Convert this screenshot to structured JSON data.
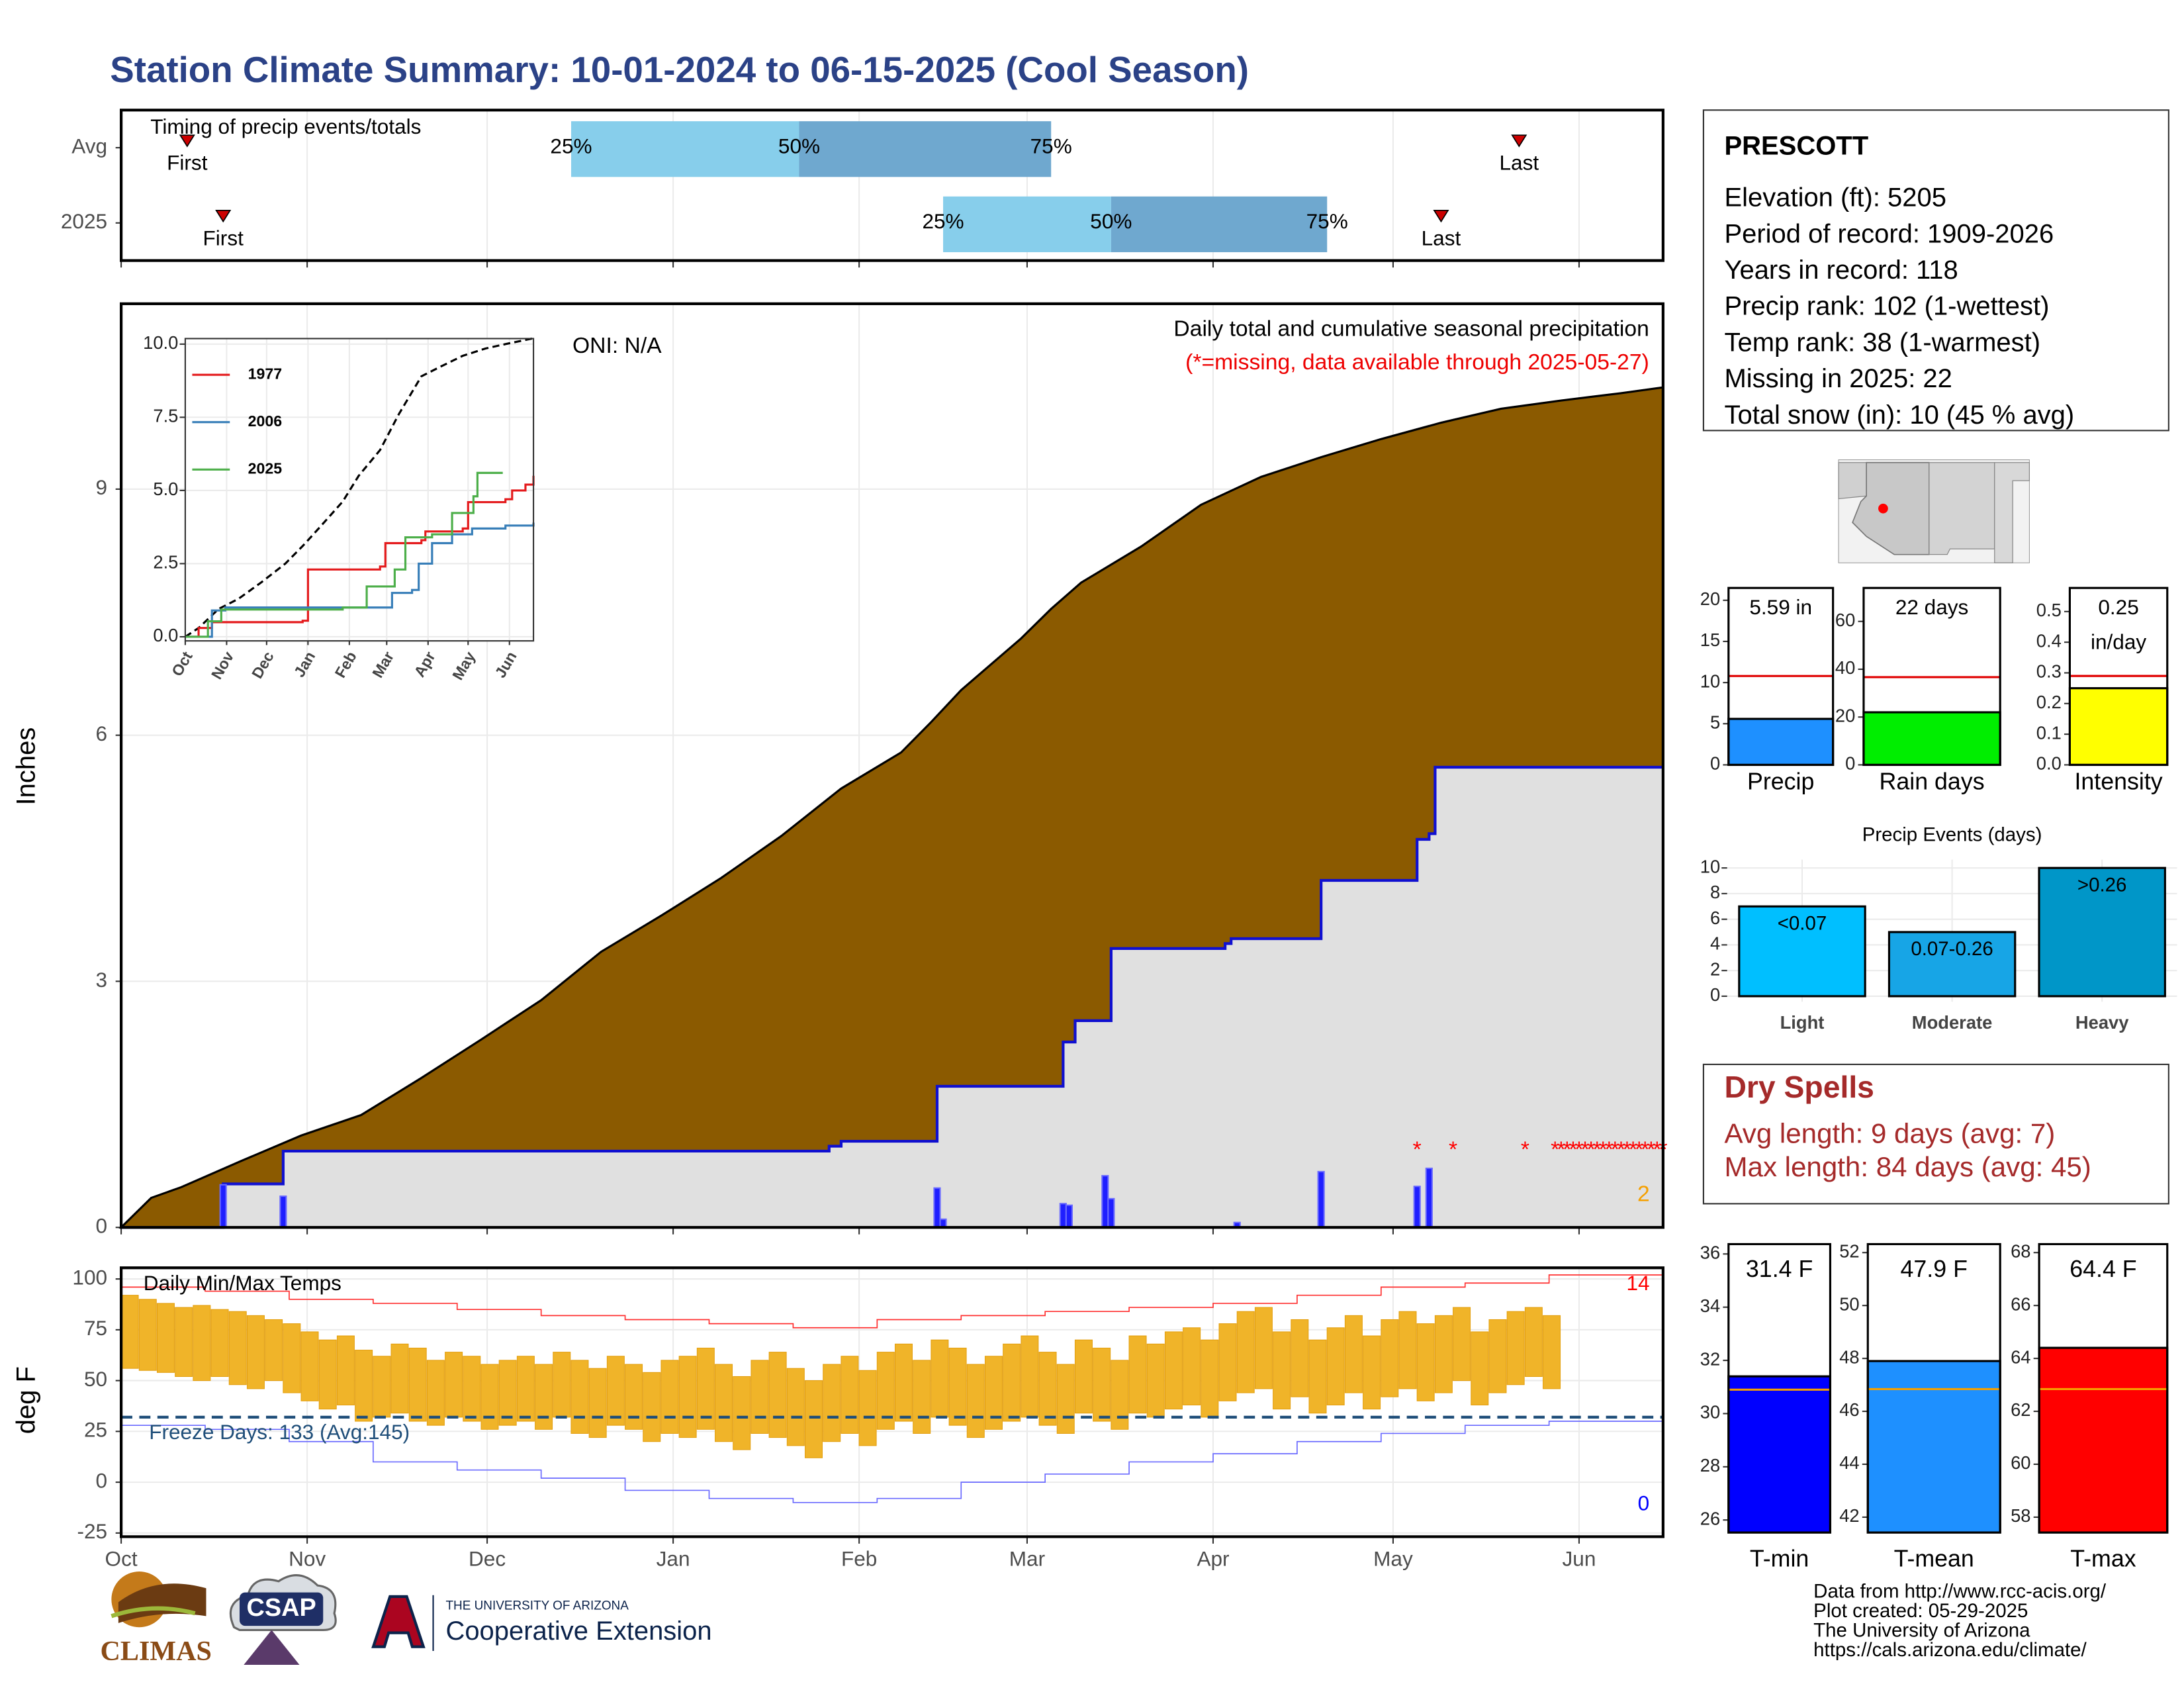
{
  "title": "Station Climate Summary: 10-01-2024 to 06-15-2025 (Cool Season)",
  "chart_data": [
    {
      "type": "timing",
      "title": "Timing of precip events/totals",
      "rows": [
        {
          "name": "Avg",
          "first": 11,
          "q25": 75,
          "q50": 113,
          "q75": 155,
          "last": 233
        },
        {
          "name": "2025",
          "first": 17,
          "q25": 137,
          "q50": 165,
          "q75": 201,
          "last": 220
        }
      ],
      "first_label": "First",
      "last_label": "Last",
      "quantile_labels": [
        "25%",
        "50%",
        "75%"
      ],
      "colors": [
        "#87ceeb",
        "#6fa8cf"
      ],
      "marker_color": "#cc0000"
    },
    {
      "type": "precip",
      "title": "Daily total and cumulative seasonal precipitation",
      "note": "(*=missing, data available through 2025-05-27)",
      "oni": "ONI: N/A",
      "ylabel": "Inches",
      "ylim": [
        0,
        11.26
      ],
      "yticks": [
        0,
        3,
        6,
        9
      ],
      "average": {
        "color": "#8b5a00",
        "x": [
          0,
          5,
          10,
          20,
          30,
          40,
          50,
          60,
          70,
          80,
          90,
          100,
          110,
          120,
          130,
          135,
          140,
          150,
          155,
          160,
          170,
          180,
          190,
          200,
          210,
          220,
          230,
          240,
          250,
          257
        ],
        "values": [
          0,
          0.36,
          0.49,
          0.81,
          1.12,
          1.37,
          1.82,
          2.29,
          2.77,
          3.36,
          3.8,
          4.26,
          4.77,
          5.35,
          5.79,
          6.16,
          6.55,
          7.18,
          7.54,
          7.86,
          8.3,
          8.81,
          9.15,
          9.39,
          9.61,
          9.81,
          9.98,
          10.08,
          10.17,
          10.24
        ]
      },
      "cumulative": {
        "color": "#1010d0",
        "fill": "#e0e0e0",
        "x": [
          0,
          17,
          27,
          118,
          120,
          136,
          157,
          159,
          165,
          184,
          185,
          200,
          216,
          218,
          219,
          257
        ],
        "values": [
          0,
          0.53,
          0.93,
          0.99,
          1.05,
          1.72,
          2.26,
          2.52,
          3.4,
          3.46,
          3.52,
          4.23,
          4.73,
          4.8,
          5.61,
          5.61
        ]
      },
      "daily": {
        "color": "#1f1fff",
        "x": [
          17,
          27,
          136,
          137,
          157,
          158,
          164,
          165,
          186,
          200,
          216,
          218
        ],
        "values": [
          0.52,
          0.38,
          0.48,
          0.1,
          0.29,
          0.27,
          0.63,
          0.35,
          0.06,
          0.68,
          0.5,
          0.72
        ]
      },
      "missing": {
        "marker": "*",
        "color": "#ff0000",
        "x": [
          216,
          222,
          234,
          239,
          240,
          241,
          242,
          243,
          244,
          245,
          246,
          247,
          248,
          249,
          250,
          251,
          252,
          253,
          254,
          255,
          256,
          257
        ]
      },
      "annotation": {
        "value": 2,
        "color": "#f5a000"
      }
    },
    {
      "type": "minmax",
      "title": "Daily Min/Max Temps",
      "ylabel": "deg F",
      "xlim": [
        0,
        257
      ],
      "xticks": [
        {
          "value": 0,
          "label": "Oct"
        },
        {
          "value": 31,
          "label": "Nov"
        },
        {
          "value": 61,
          "label": "Dec"
        },
        {
          "value": 92,
          "label": "Jan"
        },
        {
          "value": 123,
          "label": "Feb"
        },
        {
          "value": 151,
          "label": "Mar"
        },
        {
          "value": 182,
          "label": "Apr"
        },
        {
          "value": 212,
          "label": "May"
        },
        {
          "value": 243,
          "label": "Jun"
        }
      ],
      "ylim": [
        -26.8,
        105.5
      ],
      "yticks": [
        -25,
        0,
        25,
        50,
        75,
        100
      ],
      "bar_color": "#f0b429",
      "x": [
        0,
        3,
        6,
        9,
        12,
        15,
        18,
        21,
        24,
        27,
        30,
        33,
        36,
        39,
        42,
        45,
        48,
        51,
        54,
        57,
        60,
        63,
        66,
        69,
        72,
        75,
        78,
        81,
        84,
        87,
        90,
        93,
        96,
        99,
        102,
        105,
        108,
        111,
        114,
        117,
        120,
        123,
        126,
        129,
        132,
        135,
        138,
        141,
        144,
        147,
        150,
        153,
        156,
        159,
        162,
        165,
        168,
        171,
        174,
        177,
        180,
        183,
        186,
        189,
        192,
        195,
        198,
        201,
        204,
        207,
        210,
        213,
        216,
        219,
        222,
        225,
        228,
        231,
        234,
        237
      ],
      "max": [
        92,
        90,
        88,
        86,
        87,
        85,
        84,
        82,
        80,
        78,
        74,
        70,
        72,
        65,
        62,
        68,
        66,
        60,
        64,
        62,
        58,
        60,
        62,
        58,
        64,
        60,
        56,
        62,
        58,
        54,
        60,
        62,
        66,
        58,
        52,
        60,
        64,
        56,
        50,
        58,
        62,
        55,
        64,
        68,
        60,
        70,
        66,
        58,
        62,
        68,
        72,
        64,
        58,
        70,
        66,
        60,
        72,
        68,
        74,
        76,
        70,
        78,
        84,
        86,
        74,
        80,
        70,
        76,
        82,
        72,
        80,
        84,
        78,
        82,
        86,
        74,
        80,
        84,
        86,
        82
      ],
      "min": [
        56,
        55,
        54,
        52,
        50,
        52,
        48,
        46,
        50,
        44,
        40,
        36,
        38,
        30,
        32,
        34,
        30,
        28,
        32,
        30,
        26,
        28,
        30,
        26,
        32,
        24,
        22,
        28,
        26,
        20,
        24,
        22,
        26,
        20,
        16,
        24,
        22,
        18,
        12,
        20,
        24,
        18,
        26,
        30,
        24,
        32,
        28,
        22,
        26,
        30,
        32,
        28,
        24,
        34,
        30,
        26,
        34,
        32,
        36,
        38,
        32,
        40,
        44,
        46,
        36,
        42,
        34,
        38,
        44,
        36,
        42,
        46,
        40,
        44,
        50,
        38,
        44,
        48,
        52,
        46
      ],
      "record_high": {
        "color": "#ff3030",
        "x": [
          0,
          14,
          28,
          42,
          56,
          70,
          84,
          98,
          112,
          126,
          140,
          154,
          168,
          182,
          196,
          210,
          224,
          238,
          257
        ],
        "values": [
          96,
          94,
          90,
          88,
          85,
          82,
          80,
          78,
          76,
          80,
          82,
          84,
          86,
          88,
          92,
          96,
          98,
          102,
          104
        ]
      },
      "record_low": {
        "color": "#6a6aff",
        "x": [
          0,
          14,
          28,
          42,
          56,
          70,
          84,
          98,
          112,
          126,
          140,
          154,
          168,
          182,
          196,
          210,
          224,
          238,
          257
        ],
        "values": [
          28,
          26,
          20,
          10,
          6,
          2,
          -4,
          -8,
          -10,
          -8,
          0,
          4,
          10,
          14,
          20,
          24,
          28,
          30,
          34
        ]
      },
      "freeze": {
        "value": 32,
        "label": "Freeze Days: 133 (Avg:145)",
        "color": "#1f4e79"
      },
      "high_count": {
        "value": 14,
        "color": "#ff0000"
      },
      "low_count": {
        "value": 0,
        "color": "#0000ff"
      }
    },
    {
      "type": "line",
      "xlim": [
        0,
        261
      ],
      "xticks": [
        {
          "value": 0,
          "label": "Oct"
        },
        {
          "value": 31,
          "label": "Nov"
        },
        {
          "value": 61,
          "label": "Dec"
        },
        {
          "value": 92,
          "label": "Jan"
        },
        {
          "value": 123,
          "label": "Feb"
        },
        {
          "value": 151,
          "label": "Mar"
        },
        {
          "value": 182,
          "label": "Apr"
        },
        {
          "value": 212,
          "label": "May"
        },
        {
          "value": 243,
          "label": "Jun"
        }
      ],
      "ylim": [
        -0.14,
        10.19
      ],
      "yticks": [
        {
          "value": 0,
          "label": "0.0"
        },
        2.5,
        {
          "value": 5,
          "label": "5.0"
        },
        7.5,
        {
          "value": 10,
          "label": "10.0"
        }
      ],
      "average": {
        "color": "#000000",
        "x": [
          0,
          10,
          25,
          40,
          57,
          75,
          88,
          100,
          118,
          130,
          146,
          160,
          177,
          190,
          208,
          225,
          240,
          261
        ],
        "values": [
          0,
          0.3,
          0.95,
          1.3,
          1.86,
          2.5,
          3.1,
          3.7,
          4.62,
          5.5,
          6.38,
          7.6,
          8.9,
          9.2,
          9.6,
          9.85,
          10,
          10.2
        ]
      },
      "series": [
        {
          "name": "1977",
          "color": "#e41a1c",
          "x": [
            0,
            10,
            20,
            88,
            92,
            146,
            150,
            177,
            180,
            208,
            212,
            240,
            245,
            255,
            261
          ],
          "values": [
            0,
            0.3,
            0.5,
            0.55,
            2.3,
            2.4,
            3.2,
            3.3,
            3.6,
            3.7,
            4.6,
            4.7,
            5,
            5.2,
            5.5
          ]
        },
        {
          "name": "2006",
          "color": "#377eb8",
          "x": [
            0,
            20,
            30,
            150,
            155,
            170,
            175,
            185,
            200,
            215,
            240,
            261
          ],
          "values": [
            0,
            0.9,
            1,
            1,
            1.5,
            1.6,
            2.5,
            3.2,
            3.5,
            3.7,
            3.8,
            3.9
          ]
        },
        {
          "name": "2025",
          "color": "#4daf4a",
          "x": [
            0,
            17,
            27,
            118,
            136,
            157,
            165,
            185,
            200,
            216,
            219,
            238
          ],
          "values": [
            0,
            0.53,
            0.93,
            1,
            1.72,
            2.3,
            3.4,
            3.5,
            4.23,
            4.8,
            5.6,
            5.6
          ]
        }
      ]
    },
    {
      "type": "summary_bar",
      "label": "Precip",
      "value": 5.59,
      "value_label": "5.59 in",
      "avg": 10.8,
      "color": "#1e90ff",
      "avg_color": "#e00000",
      "ylim": [
        0,
        21.5
      ],
      "yticks": [
        0,
        5,
        10,
        15,
        20
      ]
    },
    {
      "type": "summary_bar",
      "label": "Rain days",
      "value": 22,
      "value_label": "22 days",
      "avg": 36.7,
      "color": "#00ee00",
      "avg_color": "#e00000",
      "ylim": [
        0,
        74
      ],
      "yticks": [
        0,
        20,
        40,
        60
      ]
    },
    {
      "type": "summary_bar",
      "label": "Intensity",
      "value": 0.25,
      "unit": "in/day",
      "avg": 0.29,
      "color": "#ffff00",
      "avg_color": "#e00000",
      "ylim": [
        0,
        0.577
      ],
      "yticks": [
        {
          "value": 0,
          "label": "0.0"
        },
        0.1,
        0.2,
        0.3,
        0.4,
        0.5
      ]
    },
    {
      "type": "bar",
      "title": "Precip Events (days)",
      "categories": [
        "Light",
        "Moderate",
        "Heavy"
      ],
      "values": [
        7,
        5,
        10
      ],
      "thresholds": [
        "<0.07",
        "0.07-0.26",
        ">0.26"
      ],
      "colors": [
        "#00bfff",
        "#17a5e6",
        "#0096c8"
      ],
      "ylim": [
        -0.43,
        10.65
      ],
      "yticks": [
        0,
        2,
        4,
        6,
        8,
        10
      ],
      "grid": true
    },
    {
      "type": "summary_bar",
      "label": "T-min",
      "value": 31.4,
      "value_label": "31.4 F",
      "avg": 30.9,
      "color": "#0000ff",
      "avg_color": "#f5a000",
      "ylim": [
        25.53,
        36.37
      ],
      "yticks": [
        26,
        28,
        30,
        32,
        34,
        36
      ]
    },
    {
      "type": "summary_bar",
      "label": "T-mean",
      "value": 47.9,
      "value_label": "47.9 F",
      "avg": 46.84,
      "color": "#1e90ff",
      "avg_color": "#f5a000",
      "ylim": [
        41.42,
        52.32
      ],
      "yticks": [
        42,
        44,
        46,
        48,
        50,
        52
      ]
    },
    {
      "type": "summary_bar",
      "label": "T-max",
      "value": 64.4,
      "value_label": "64.4 F",
      "avg": 62.84,
      "color": "#ff0000",
      "avg_color": "#f5a000",
      "ylim": [
        57.42,
        68.32
      ],
      "yticks": [
        58,
        60,
        62,
        64,
        66,
        68
      ]
    }
  ],
  "station": {
    "name": "PRESCOTT",
    "lines": [
      "Elevation (ft): 5205",
      "Period of record: 1909-2026",
      "Years in record: 118",
      "Precip rank: 102 (1-wettest)",
      "Temp rank: 38 (1-warmest)",
      "Missing in 2025: 22",
      "Total snow (in): 10 (45 % avg)"
    ]
  },
  "dry_spells": {
    "title": "Dry Spells",
    "lines": [
      "Avg length: 9 days (avg: 7)",
      "Max length: 84 days (avg: 45)"
    ]
  },
  "credits": [
    "Data from http://www.rcc-acis.org/",
    "Plot created: 05-29-2025",
    "The University of Arizona",
    "https://cals.arizona.edu/climate/"
  ],
  "logos": {
    "climas": "CLIMAS",
    "csap": "CSAP",
    "ua_top": "THE UNIVERSITY OF ARIZONA",
    "ua_bottom": "Cooperative Extension"
  }
}
